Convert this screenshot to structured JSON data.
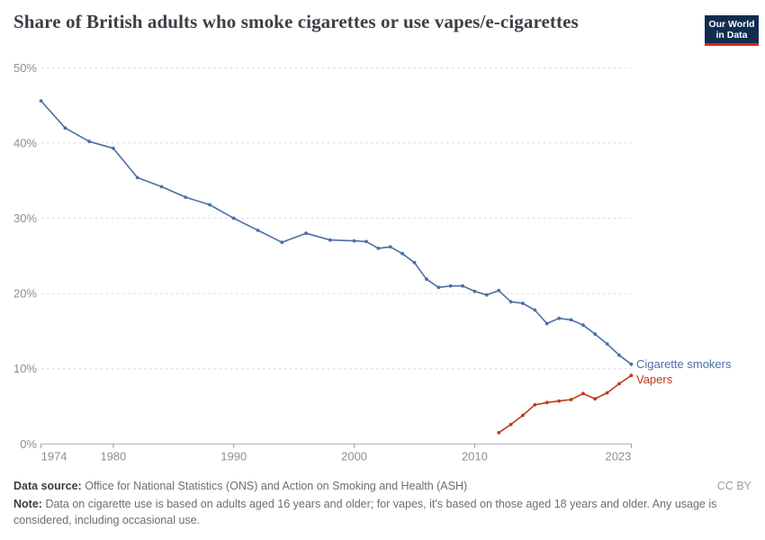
{
  "header": {
    "title": "Share of British adults who smoke cigarettes or use vapes/e-cigarettes",
    "logo": {
      "line1": "Our World",
      "line2": "in Data"
    }
  },
  "chart_data": {
    "type": "line",
    "title": "Share of British adults who smoke cigarettes or use vapes/e-cigarettes",
    "xlabel": "",
    "ylabel": "",
    "xlim": [
      1974,
      2023
    ],
    "ylim": [
      0,
      50
    ],
    "x_ticks": [
      1974,
      1980,
      1990,
      2000,
      2010,
      2023
    ],
    "y_tick_values": [
      0,
      10,
      20,
      30,
      40,
      50
    ],
    "y_tick_labels": [
      "0%",
      "10%",
      "20%",
      "30%",
      "40%",
      "50%"
    ],
    "grid": "horizontal-dashed",
    "legend_position": "line-end-labels",
    "series": [
      {
        "name": "Cigarette smokers",
        "color": "#4C6FA5",
        "x": [
          1974,
          1976,
          1978,
          1980,
          1982,
          1984,
          1986,
          1988,
          1990,
          1992,
          1994,
          1996,
          1998,
          2000,
          2001,
          2002,
          2003,
          2004,
          2005,
          2006,
          2007,
          2008,
          2009,
          2010,
          2011,
          2012,
          2013,
          2014,
          2015,
          2016,
          2017,
          2018,
          2019,
          2020,
          2021,
          2022,
          2023
        ],
        "values": [
          45.6,
          42.0,
          40.2,
          39.3,
          35.4,
          34.2,
          32.8,
          31.8,
          30.0,
          28.4,
          26.8,
          28.0,
          27.1,
          27.0,
          26.9,
          26.0,
          26.2,
          25.3,
          24.1,
          21.9,
          20.8,
          21.0,
          21.0,
          20.3,
          19.8,
          20.4,
          18.9,
          18.7,
          17.8,
          16.0,
          16.7,
          16.5,
          15.8,
          14.6,
          13.3,
          11.8,
          10.6
        ]
      },
      {
        "name": "Vapers",
        "color": "#BC391E",
        "x": [
          2012,
          2013,
          2014,
          2015,
          2016,
          2017,
          2018,
          2019,
          2020,
          2021,
          2022,
          2023
        ],
        "values": [
          1.5,
          2.6,
          3.8,
          5.2,
          5.5,
          5.7,
          5.9,
          6.7,
          6.0,
          6.8,
          8.0,
          9.1
        ]
      }
    ]
  },
  "footer": {
    "data_source_label": "Data source:",
    "data_source": "Office for National Statistics (ONS) and Action on Smoking and Health (ASH)",
    "license": "CC BY",
    "note_label": "Note:",
    "note": "Data on cigarette use is based on adults aged 16 years and older; for vapes, it's based on those aged 18 years and older. Any usage is considered, including occasional use."
  },
  "colors": {
    "cigarette_line": "#4C6FA5",
    "vapers_line": "#BC391E",
    "gridline": "#dcdcdc",
    "axis_line": "#ababab",
    "tick_text": "#8f8f8f",
    "title_text": "#3b4046",
    "logo_background": "#102d50",
    "logo_bar": "#d8271c"
  }
}
